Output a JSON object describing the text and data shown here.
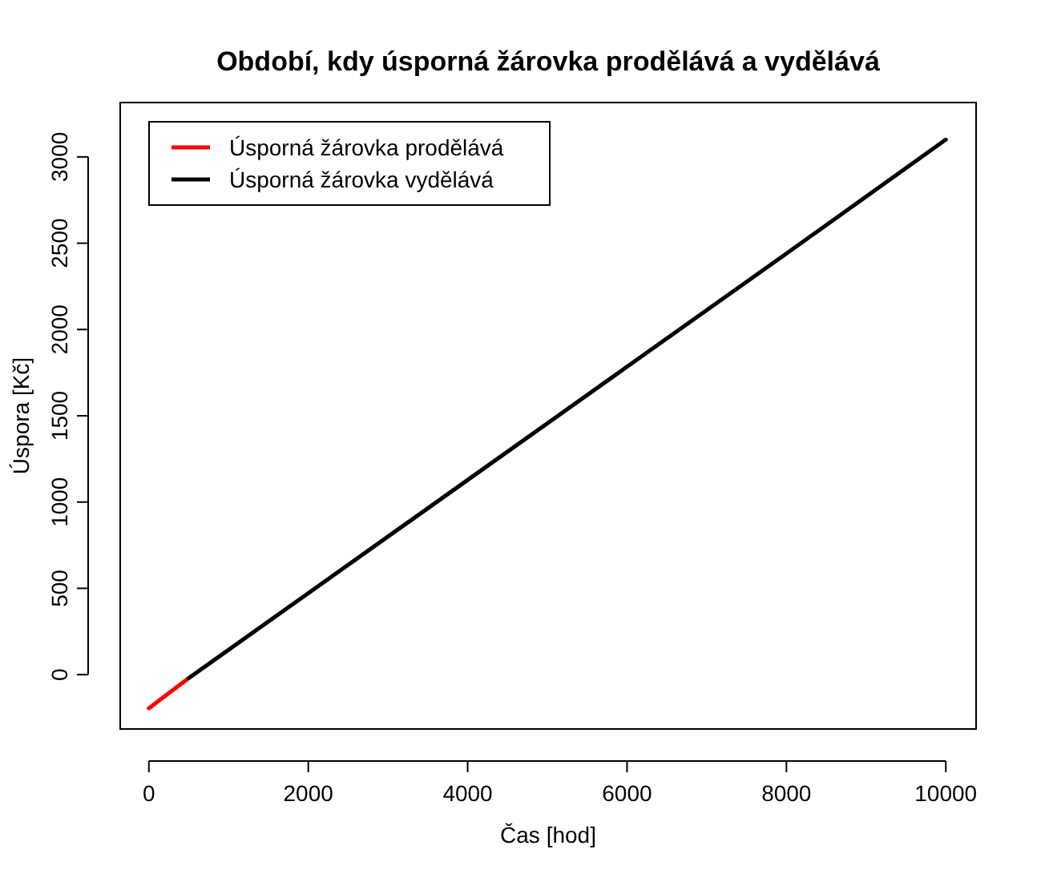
{
  "chart_data": {
    "type": "line",
    "title": "Období, kdy úsporná žárovka prodělává a vydělává",
    "xlabel": "Čas [hod]",
    "ylabel": "Úspora [Kč]",
    "xlim": [
      -360,
      10380
    ],
    "ylim": [
      -315,
      3315
    ],
    "xticks": [
      0,
      2000,
      4000,
      6000,
      8000,
      10000
    ],
    "yticks": [
      0,
      500,
      1000,
      1500,
      2000,
      2500,
      3000
    ],
    "legend": "top left",
    "grid": false,
    "marker": "none",
    "line_style": "solid",
    "series": [
      {
        "name": "Úsporná žárovka prodělává",
        "color": "#ff0000",
        "x": [
          0,
          100,
          200,
          300,
          400,
          500
        ],
        "values": [
          -195,
          -160,
          -125,
          -90,
          -55,
          -20
        ]
      },
      {
        "name": "Úsporná žárovka vydělává",
        "color": "#000000",
        "x": [
          500,
          2000,
          4000,
          6000,
          8000,
          10000
        ],
        "values": [
          -20,
          472,
          1128,
          1784,
          2440,
          3100
        ]
      }
    ]
  }
}
